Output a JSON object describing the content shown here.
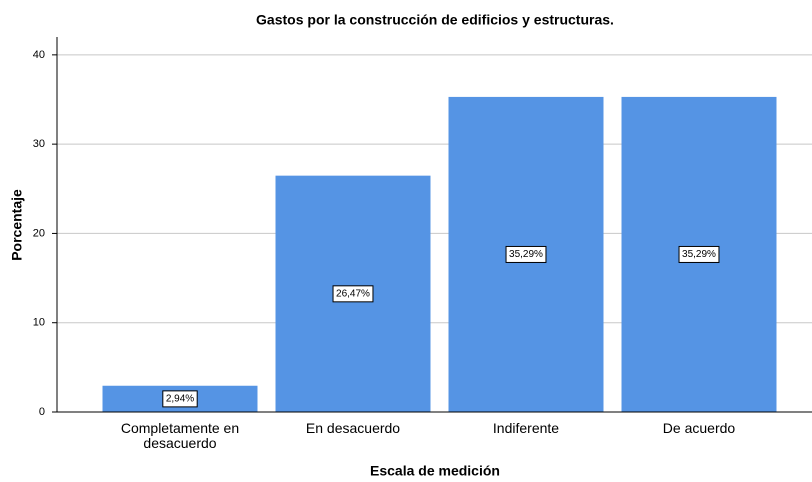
{
  "chart_data": {
    "type": "bar",
    "title": "Gastos por la construcción de edificios y estructuras.",
    "x_label": "Escala de medición",
    "y_label": "Porcentaje",
    "categories": [
      "Completamente en desacuerdo",
      "En desacuerdo",
      "Indiferente",
      "De acuerdo"
    ],
    "values": [
      2.94,
      26.47,
      35.29,
      35.29
    ],
    "value_labels": [
      "2,94%",
      "26,47%",
      "35,29%",
      "35,29%"
    ],
    "color": "#5594e4",
    "ylim": [
      0,
      42
    ],
    "yticks": [
      0,
      10,
      20,
      30,
      40
    ],
    "grid": true
  }
}
